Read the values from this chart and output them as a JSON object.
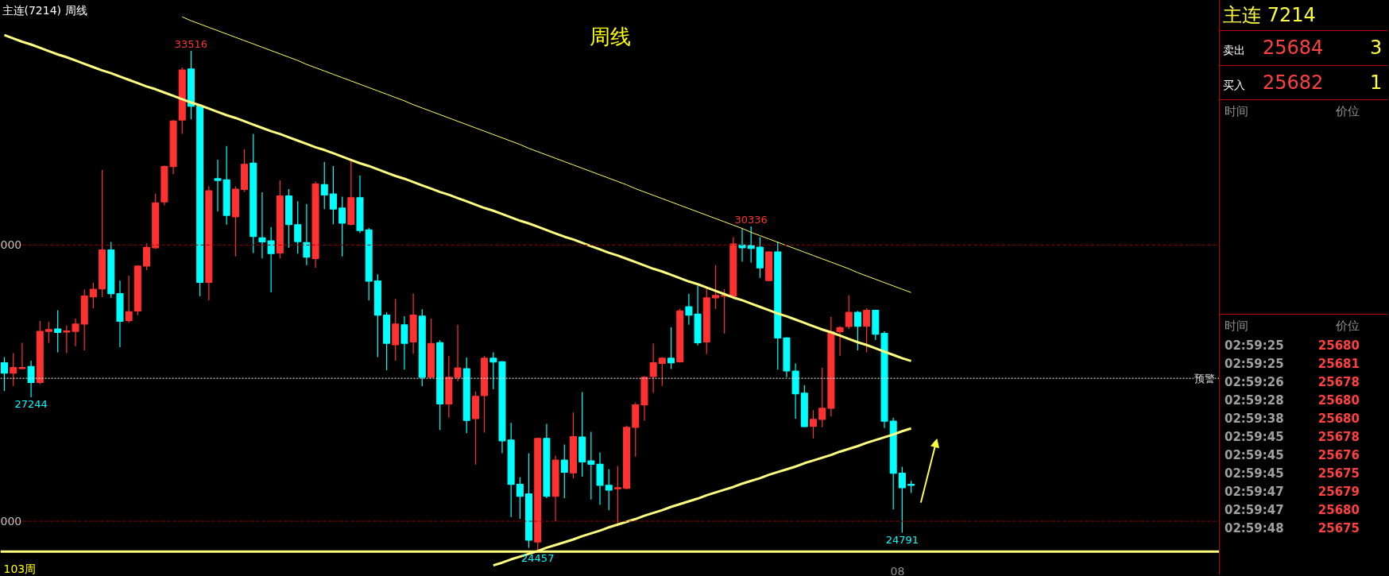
{
  "chart_data": {
    "type": "candlestick",
    "title": "周线",
    "categories": [
      null,
      null,
      null,
      null,
      null,
      null,
      null,
      null,
      null,
      null,
      null,
      null,
      null,
      null,
      null,
      null,
      null,
      null,
      null,
      null,
      null,
      null,
      null,
      null,
      null,
      null,
      null,
      null,
      null,
      null,
      null,
      null,
      null,
      null,
      null,
      null,
      null,
      null,
      null,
      null,
      null,
      null,
      null,
      null,
      null,
      null,
      null,
      null,
      null,
      null,
      null,
      null,
      null,
      null,
      null,
      null,
      null,
      null,
      null,
      null,
      null,
      null,
      null,
      null,
      null,
      null,
      null,
      null,
      null,
      null,
      null,
      null,
      null,
      null,
      null,
      null,
      null,
      null,
      null,
      null,
      null,
      null,
      null,
      null,
      null,
      null,
      null,
      null,
      null,
      null,
      null,
      null,
      null,
      null,
      null,
      null,
      null,
      null,
      null,
      null,
      null,
      null,
      null
    ],
    "ohlc": [
      [
        27869,
        27969,
        27356,
        27681
      ],
      [
        27681,
        28044,
        27450,
        27781
      ],
      [
        27762,
        28231,
        27750,
        27781
      ],
      [
        27800,
        27906,
        27244,
        27512
      ],
      [
        27512,
        28625,
        27481,
        28437
      ],
      [
        28437,
        28606,
        28231,
        28469
      ],
      [
        28481,
        28819,
        28056,
        28419
      ],
      [
        28425,
        28544,
        28044,
        28444
      ],
      [
        28437,
        28669,
        28169,
        28569
      ],
      [
        28569,
        29194,
        28094,
        29075
      ],
      [
        29062,
        29319,
        28856,
        29200
      ],
      [
        29206,
        31356,
        29056,
        29912
      ],
      [
        29912,
        30056,
        29044,
        29119
      ],
      [
        29119,
        29356,
        28150,
        28619
      ],
      [
        28631,
        29444,
        28594,
        28794
      ],
      [
        28806,
        29637,
        28731,
        29619
      ],
      [
        29619,
        30031,
        29544,
        29956
      ],
      [
        29950,
        30931,
        29931,
        30762
      ],
      [
        30781,
        31440,
        30719,
        31419
      ],
      [
        31419,
        32262,
        31281,
        32244
      ],
      [
        32262,
        33212,
        32012,
        33169
      ],
      [
        33187,
        33516,
        32275,
        32512
      ],
      [
        32512,
        32544,
        29075,
        29325
      ],
      [
        29325,
        31062,
        28999,
        30981
      ],
      [
        31200,
        31544,
        30606,
        31169
      ],
      [
        31181,
        31794,
        30369,
        30537
      ],
      [
        30512,
        31062,
        29794,
        31012
      ],
      [
        31006,
        31731,
        30962,
        31462
      ],
      [
        31481,
        32012,
        29856,
        30156
      ],
      [
        30131,
        30956,
        29756,
        30056
      ],
      [
        30075,
        30325,
        29144,
        29844
      ],
      [
        29856,
        31169,
        29756,
        30887
      ],
      [
        30887,
        31012,
        29950,
        30369
      ],
      [
        30369,
        30794,
        29844,
        30062
      ],
      [
        30044,
        30744,
        29637,
        29781
      ],
      [
        29756,
        31150,
        29587,
        31106
      ],
      [
        31094,
        31506,
        30650,
        30906
      ],
      [
        30925,
        31431,
        30375,
        30650
      ],
      [
        30669,
        30875,
        29794,
        30394
      ],
      [
        30375,
        31544,
        30356,
        30856
      ],
      [
        30856,
        31256,
        30219,
        30262
      ],
      [
        30275,
        30306,
        28999,
        29344
      ],
      [
        29350,
        29469,
        27969,
        28731
      ],
      [
        28731,
        28781,
        27731,
        28219
      ],
      [
        28194,
        29025,
        27906,
        28569
      ],
      [
        28556,
        28712,
        27744,
        28219
      ],
      [
        28244,
        29125,
        28031,
        28731
      ],
      [
        28712,
        28837,
        27444,
        27606
      ],
      [
        27606,
        28669,
        27606,
        28219
      ],
      [
        28231,
        28275,
        26650,
        27125
      ],
      [
        27125,
        27994,
        26875,
        27606
      ],
      [
        27606,
        28556,
        27531,
        27775
      ],
      [
        27762,
        27962,
        26594,
        26825
      ],
      [
        26856,
        27344,
        26025,
        27262
      ],
      [
        27275,
        27994,
        26606,
        27950
      ],
      [
        27950,
        28056,
        27387,
        27881
      ],
      [
        27887,
        27900,
        26231,
        26456
      ],
      [
        26469,
        26781,
        25075,
        25669
      ],
      [
        25669,
        25794,
        25044,
        25450
      ],
      [
        25494,
        26231,
        24519,
        24656
      ],
      [
        24625,
        26512,
        24457,
        26500
      ],
      [
        26500,
        26762,
        25419,
        25450
      ],
      [
        25450,
        26187,
        25000,
        26106
      ],
      [
        26106,
        26387,
        25419,
        25887
      ],
      [
        25875,
        26969,
        25775,
        26531
      ],
      [
        26525,
        27337,
        25806,
        26075
      ],
      [
        26094,
        26619,
        25394,
        26031
      ],
      [
        26031,
        26244,
        25294,
        25650
      ],
      [
        25650,
        25944,
        25200,
        25562
      ],
      [
        25587,
        26000,
        24906,
        25606
      ],
      [
        25594,
        26731,
        25575,
        26700
      ],
      [
        26700,
        27150,
        26169,
        27106
      ],
      [
        27106,
        27625,
        26825,
        27606
      ],
      [
        27619,
        28219,
        27325,
        27869
      ],
      [
        27856,
        27969,
        27450,
        27950
      ],
      [
        27950,
        28512,
        27756,
        27869
      ],
      [
        27887,
        28844,
        27875,
        28806
      ],
      [
        28881,
        29119,
        28556,
        28731
      ],
      [
        28750,
        29262,
        28181,
        28231
      ],
      [
        28244,
        29231,
        28025,
        29044
      ],
      [
        29044,
        29637,
        28844,
        29087
      ],
      [
        29075,
        29200,
        28400,
        29087
      ],
      [
        29075,
        30144,
        29025,
        30019
      ],
      [
        30000,
        30294,
        29700,
        29950
      ],
      [
        29994,
        30336,
        29681,
        29937
      ],
      [
        29962,
        30144,
        29406,
        29587
      ],
      [
        29356,
        29887,
        29344,
        29875
      ],
      [
        29875,
        30062,
        27744,
        28319
      ],
      [
        28319,
        28330,
        27606,
        27719
      ],
      [
        27719,
        27856,
        26856,
        27306
      ],
      [
        27319,
        27462,
        26700,
        26712
      ],
      [
        26719,
        27012,
        26500,
        26844
      ],
      [
        26844,
        27775,
        26700,
        27044
      ],
      [
        27044,
        28700,
        26894,
        28431
      ],
      [
        28431,
        28531,
        27994,
        28506
      ],
      [
        28525,
        29094,
        28481,
        28781
      ],
      [
        28781,
        28806,
        28094,
        28531
      ],
      [
        28531,
        28856,
        28056,
        28819
      ],
      [
        28819,
        28830,
        28281,
        28387
      ],
      [
        28400,
        28437,
        26687,
        26812
      ],
      [
        26812,
        26875,
        25212,
        25869
      ],
      [
        25869,
        25987,
        24791,
        25606
      ],
      [
        25669,
        25731,
        25512,
        25650
      ]
    ],
    "colors": [
      "#00ffff",
      "#ff3232",
      "#ff3232",
      "#00ffff",
      "#ff3232",
      "#ff3232",
      "#00ffff",
      "#ff3232",
      "#ff3232",
      "#ff3232",
      "#ff3232",
      "#ff3232",
      "#00ffff",
      "#00ffff",
      "#ff3232",
      "#ff3232",
      "#ff3232",
      "#ff3232",
      "#ff3232",
      "#ff3232",
      "#ff3232",
      "#00ffff",
      "#00ffff",
      "#ff3232",
      "#00ffff",
      "#00ffff",
      "#ff3232",
      "#ff3232",
      "#00ffff",
      "#00ffff",
      "#00ffff",
      "#ff3232",
      "#00ffff",
      "#00ffff",
      "#00ffff",
      "#ff3232",
      "#00ffff",
      "#00ffff",
      "#00ffff",
      "#ff3232",
      "#00ffff",
      "#00ffff",
      "#00ffff",
      "#00ffff",
      "#ff3232",
      "#00ffff",
      "#ff3232",
      "#00ffff",
      "#ff3232",
      "#00ffff",
      "#ff3232",
      "#ff3232",
      "#00ffff",
      "#ff3232",
      "#ff3232",
      "#00ffff",
      "#00ffff",
      "#00ffff",
      "#00ffff",
      "#00ffff",
      "#ff3232",
      "#00ffff",
      "#ff3232",
      "#00ffff",
      "#ff3232",
      "#00ffff",
      "#00ffff",
      "#00ffff",
      "#00ffff",
      "#ff3232",
      "#ff3232",
      "#ff3232",
      "#ff3232",
      "#ff3232",
      "#ff3232",
      "#00ffff",
      "#ff3232",
      "#00ffff",
      "#00ffff",
      "#ff3232",
      "#ff3232",
      "#ff3232",
      "#ff3232",
      "#00ffff",
      "#00ffff",
      "#00ffff",
      "#ff3232",
      "#00ffff",
      "#00ffff",
      "#00ffff",
      "#00ffff",
      "#ff3232",
      "#ff3232",
      "#ff3232",
      "#ff3232",
      "#ff3232",
      "#00ffff",
      "#ff3232",
      "#00ffff",
      "#00ffff",
      "#00ffff",
      "#00ffff",
      "#00ffff"
    ],
    "series": [
      {
        "type": "line",
        "color": "#ffff80",
        "values": [
          33800,
          33740,
          33680,
          33630,
          33570,
          33510,
          33450,
          33400,
          33340,
          33280,
          33220,
          33160,
          33110,
          33050,
          32990,
          32930,
          32870,
          32820,
          32760,
          32700,
          32640,
          32580,
          32530,
          32470,
          32410,
          32350,
          32300,
          32240,
          32180,
          32120,
          32060,
          32010,
          31950,
          31890,
          31830,
          31770,
          31720,
          31660,
          31600,
          31540,
          31480,
          31430,
          31370,
          31310,
          31250,
          31200,
          31140,
          31080,
          31020,
          30960,
          30910,
          30850,
          30790,
          30730,
          30670,
          30620,
          30560,
          30500,
          30440,
          30390,
          30330,
          30270,
          30210,
          30150,
          30100,
          30040,
          29980,
          29920,
          29860,
          29810,
          29750,
          29690,
          29630,
          29570,
          29520,
          29460,
          29400,
          29340,
          29290,
          29230,
          29170,
          29110,
          29050,
          29000,
          28940,
          28880,
          28820,
          28760,
          28710,
          28650,
          28590,
          28530,
          28470,
          28420,
          28360,
          28300,
          28240,
          28190,
          28130,
          28070,
          28010,
          27950,
          27900
        ]
      },
      {
        "type": "line",
        "color": "#ffff66",
        "values": [
          null,
          null,
          null,
          null,
          null,
          null,
          null,
          null,
          null,
          null,
          null,
          null,
          null,
          null,
          null,
          null,
          null,
          null,
          null,
          null,
          34130,
          34060,
          34000,
          33940,
          33880,
          33820,
          33760,
          33700,
          33640,
          33580,
          33520,
          33460,
          33400,
          33340,
          33270,
          33210,
          33150,
          33090,
          33030,
          32970,
          32910,
          32850,
          32790,
          32730,
          32670,
          32610,
          32540,
          32480,
          32420,
          32360,
          32300,
          32240,
          32180,
          32120,
          32060,
          32000,
          31940,
          31880,
          31820,
          31750,
          31690,
          31630,
          31570,
          31510,
          31450,
          31390,
          31330,
          31270,
          31210,
          31150,
          31090,
          31020,
          30960,
          30900,
          30840,
          30780,
          30720,
          30660,
          30600,
          30540,
          30480,
          30420,
          30360,
          30300,
          30230,
          30170,
          30110,
          30050,
          29990,
          29930,
          29870,
          29810,
          29750,
          29690,
          29630,
          29570,
          29500,
          29440,
          29380,
          29320,
          29260,
          29200,
          29140
        ]
      },
      {
        "type": "line",
        "color": "#ffff80",
        "values": [
          null,
          null,
          null,
          null,
          null,
          null,
          null,
          null,
          null,
          null,
          null,
          null,
          null,
          null,
          null,
          null,
          null,
          null,
          null,
          null,
          null,
          null,
          null,
          null,
          null,
          null,
          null,
          null,
          null,
          null,
          null,
          null,
          null,
          null,
          null,
          null,
          null,
          null,
          null,
          null,
          null,
          null,
          null,
          null,
          null,
          null,
          null,
          null,
          null,
          null,
          null,
          null,
          null,
          null,
          null,
          24200,
          24250,
          24310,
          24360,
          24410,
          24460,
          24520,
          24570,
          24620,
          24670,
          24730,
          24780,
          24830,
          24890,
          24940,
          24990,
          25040,
          25100,
          25150,
          25200,
          25260,
          25310,
          25360,
          25410,
          25470,
          25520,
          25570,
          25620,
          25680,
          25730,
          25780,
          25840,
          25890,
          25940,
          25990,
          26050,
          26100,
          26150,
          26200,
          26260,
          26310,
          26360,
          26420,
          26470,
          26520,
          26570,
          26630,
          26680
        ]
      }
    ],
    "ref_lines": [
      {
        "axis": "y",
        "value": 30000,
        "color": "#a00000",
        "line_style": "dashed"
      },
      {
        "axis": "y",
        "value": 25000,
        "color": "#a00000",
        "line_style": "dashed"
      },
      {
        "axis": "y",
        "value": 27587,
        "label": "预警",
        "color": "#ffffff",
        "line_style": "dotted"
      },
      {
        "axis": "y",
        "value": 24450,
        "color": "#ffff80",
        "line_style": "solid"
      }
    ],
    "annotations": [
      {
        "text": "33516",
        "y": 33516
      },
      {
        "text": "27244",
        "y": 27244
      },
      {
        "text": "30336",
        "y": 30336
      },
      {
        "text": "24457",
        "y": 24457
      },
      {
        "text": "24791",
        "y": 24791
      },
      "103周",
      "08",
      "主连(7214)  周线",
      "000",
      "000",
      "主连  7214",
      "卖出",
      "25684",
      "3",
      "买入",
      "25682",
      "1",
      "时间",
      "价位",
      "时间",
      "价位",
      "02:59:25",
      "25680",
      "02:59:25",
      "25681",
      "02:59:26",
      "25678",
      "02:59:28",
      "25680",
      "02:59:38",
      "25680",
      "02:59:45",
      "25678",
      "02:59:45",
      "25676",
      "02:59:45",
      "25675",
      "02:59:47",
      "25679",
      "02:59:47",
      "25680",
      "02:59:48",
      "25675"
    ],
    "tick_labels": false
  }
}
